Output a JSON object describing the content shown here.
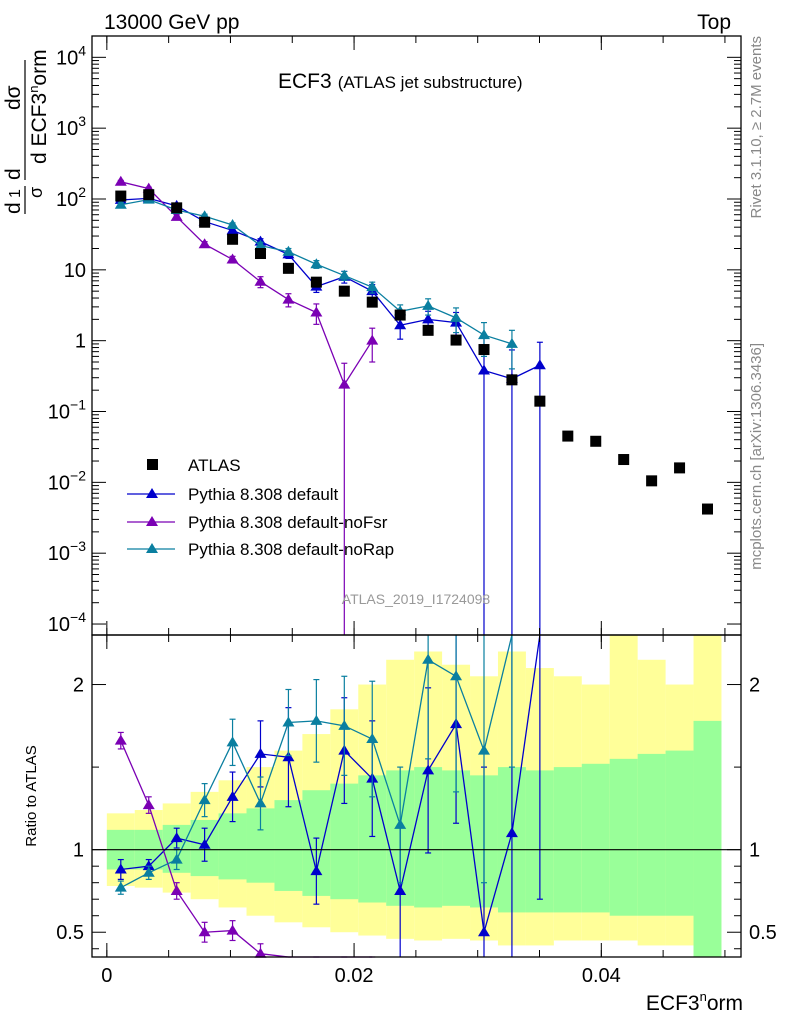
{
  "header": {
    "left": "13000 GeV pp",
    "right": "Top"
  },
  "side_labels": {
    "rivet": "Rivet 3.1.10, ≥ 2.7M events",
    "mcplots": "mcplots.cern.ch [arXiv:1306.3436]"
  },
  "title": {
    "main": "ECF3",
    "sub": "(ATLAS jet substructure)"
  },
  "watermark": "ATLAS_2019_I1724098",
  "ylabel_main": "1/σ dσ/d ECF3norm",
  "ylabel_ratio": "Ratio to ATLAS",
  "xlabel": "ECF3norm",
  "colors": {
    "data": "#000000",
    "default": "#0000cc",
    "noFsr": "#7b00b4",
    "noRap": "#0a7fa0",
    "band_inner": "#99ff99",
    "band_outer": "#ffff99"
  },
  "chart_data": {
    "type": "scatter",
    "x_range": [
      -0.0012,
      0.0513
    ],
    "main_panel": {
      "yscale": "log",
      "ylim": [
        7e-05,
        20000
      ],
      "yticks": [
        {
          "v": 0.0001,
          "base": "10",
          "exp": "−4"
        },
        {
          "v": 0.001,
          "base": "10",
          "exp": "−3"
        },
        {
          "v": 0.01,
          "base": "10",
          "exp": "−2"
        },
        {
          "v": 0.1,
          "base": "10",
          "exp": "−1"
        },
        {
          "v": 1,
          "base": "1",
          "exp": ""
        },
        {
          "v": 10,
          "base": "10",
          "exp": ""
        },
        {
          "v": 100,
          "base": "10",
          "exp": "2"
        },
        {
          "v": 1000,
          "base": "10",
          "exp": "3"
        },
        {
          "v": 10000,
          "base": "10",
          "exp": "4"
        }
      ]
    },
    "ratio_panel": {
      "ylim": [
        0.35,
        2.3
      ],
      "yticks": [
        0.5,
        1,
        2
      ],
      "ytick_labels": [
        "0.5",
        "1",
        "2"
      ]
    },
    "xticks": [
      0,
      0.02,
      0.04
    ],
    "xtick_labels": [
      "0",
      "0.02",
      "0.04"
    ],
    "bin_edges": [
      0.0,
      0.00226,
      0.00452,
      0.00678,
      0.00904,
      0.0113,
      0.01356,
      0.01582,
      0.01808,
      0.02034,
      0.0226,
      0.02486,
      0.02712,
      0.02938,
      0.03164,
      0.0339,
      0.03616,
      0.03842,
      0.04068,
      0.04294,
      0.0452,
      0.04746,
      0.04972
    ],
    "data": {
      "name": "ATLAS",
      "x": [
        0.00113,
        0.00339,
        0.00565,
        0.00791,
        0.01017,
        0.01243,
        0.01469,
        0.01695,
        0.01921,
        0.02147,
        0.02373,
        0.02599,
        0.02825,
        0.03051,
        0.03277,
        0.03503,
        0.03729,
        0.03955,
        0.04181,
        0.04407,
        0.04633,
        0.04859
      ],
      "y": [
        110,
        115,
        75,
        47,
        27,
        17,
        10.5,
        6.7,
        5.0,
        3.5,
        2.3,
        1.4,
        1.02,
        0.75,
        0.28,
        0.14,
        0.045,
        0.038,
        0.021,
        0.0105,
        0.016,
        0.0042
      ]
    },
    "band_inner": [
      [
        0.88,
        1.12
      ],
      [
        0.88,
        1.12
      ],
      [
        0.86,
        1.15
      ],
      [
        0.84,
        1.18
      ],
      [
        0.82,
        1.22
      ],
      [
        0.8,
        1.25
      ],
      [
        0.75,
        1.3
      ],
      [
        0.72,
        1.36
      ],
      [
        0.7,
        1.4
      ],
      [
        0.68,
        1.45
      ],
      [
        0.66,
        1.48
      ],
      [
        0.65,
        1.5
      ],
      [
        0.66,
        1.48
      ],
      [
        0.65,
        1.45
      ],
      [
        0.62,
        1.5
      ],
      [
        0.62,
        1.48
      ],
      [
        0.62,
        1.5
      ],
      [
        0.62,
        1.52
      ],
      [
        0.6,
        1.55
      ],
      [
        0.6,
        1.58
      ],
      [
        0.6,
        1.6
      ],
      [
        0.35,
        1.78
      ]
    ],
    "band_outer": [
      [
        0.78,
        1.22
      ],
      [
        0.77,
        1.24
      ],
      [
        0.74,
        1.28
      ],
      [
        0.7,
        1.35
      ],
      [
        0.65,
        1.42
      ],
      [
        0.6,
        1.5
      ],
      [
        0.56,
        1.6
      ],
      [
        0.53,
        1.7
      ],
      [
        0.5,
        1.85
      ],
      [
        0.48,
        2.0
      ],
      [
        0.46,
        2.15
      ],
      [
        0.45,
        2.2
      ],
      [
        0.46,
        2.12
      ],
      [
        0.45,
        2.05
      ],
      [
        0.42,
        2.2
      ],
      [
        0.42,
        2.1
      ],
      [
        0.45,
        2.05
      ],
      [
        0.45,
        2.0
      ],
      [
        0.45,
        2.3
      ],
      [
        0.42,
        2.15
      ],
      [
        0.42,
        2.0
      ],
      [
        0.35,
        2.3
      ]
    ],
    "series": [
      {
        "name": "Pythia 8.308 default",
        "x": [
          0.00113,
          0.00339,
          0.00565,
          0.00791,
          0.01017,
          0.01243,
          0.01469,
          0.01695,
          0.01921,
          0.02147,
          0.02373,
          0.02599,
          0.02825,
          0.03051,
          0.03277,
          0.03503
        ],
        "y": [
          97,
          102,
          80,
          48,
          36,
          25,
          16.5,
          5.8,
          8.0,
          5.0,
          1.65,
          2.0,
          1.8,
          0.38,
          0.29,
          0.45
        ],
        "yerr": [
          7,
          6,
          5,
          4,
          3,
          2.5,
          2,
          1,
          1.5,
          1.2,
          0.6,
          0.6,
          0.7,
          0.7,
          0.45,
          0.5
        ],
        "ratio": [
          0.88,
          0.9,
          1.07,
          1.03,
          1.32,
          1.58,
          1.56,
          0.87,
          1.6,
          1.43,
          0.75,
          1.48,
          1.76,
          0.5,
          1.1,
          3.2
        ],
        "ratio_err": [
          0.06,
          0.04,
          0.06,
          0.1,
          0.15,
          0.2,
          0.3,
          0.2,
          0.32,
          0.35,
          0.4,
          0.5,
          0.6,
          1.0,
          1.5,
          2.5
        ]
      },
      {
        "name": "Pythia 8.308 default-noFsr",
        "x": [
          0.00113,
          0.00339,
          0.00565,
          0.00791,
          0.01017,
          0.01243,
          0.01469,
          0.01695,
          0.01921,
          0.02147
        ],
        "y": [
          175,
          140,
          56,
          23,
          14,
          6.8,
          3.8,
          2.5,
          0.24,
          1.0
        ],
        "yerr": [
          8,
          7,
          4,
          2,
          1.5,
          1.2,
          0.8,
          0.8,
          0.24,
          0.5
        ],
        "ratio": [
          1.66,
          1.27,
          0.75,
          0.5,
          0.51,
          0.37,
          0.3,
          0.2,
          0.05,
          0.15
        ],
        "ratio_err": [
          0.05,
          0.05,
          0.05,
          0.06,
          0.06,
          0.06,
          0.05,
          0.05,
          0.05,
          0.05
        ]
      },
      {
        "name": "Pythia 8.308 default-noRap",
        "x": [
          0.00113,
          0.00339,
          0.00565,
          0.00791,
          0.01017,
          0.01243,
          0.01469,
          0.01695,
          0.01921,
          0.02147,
          0.02373,
          0.02599,
          0.02825,
          0.03051,
          0.03277
        ],
        "y": [
          83,
          98,
          70,
          57,
          43,
          22,
          18,
          12,
          8.3,
          5.7,
          2.6,
          3.1,
          2.1,
          1.2,
          0.9
        ],
        "yerr": [
          6,
          6,
          5,
          4,
          3,
          2.5,
          2,
          1.5,
          1.2,
          1.0,
          0.6,
          0.8,
          0.8,
          0.6,
          0.5
        ],
        "ratio": [
          0.77,
          0.86,
          0.94,
          1.3,
          1.65,
          1.28,
          1.77,
          1.78,
          1.75,
          1.67,
          1.15,
          2.15,
          2.05,
          1.6,
          3.0
        ],
        "ratio_err": [
          0.04,
          0.04,
          0.06,
          0.1,
          0.14,
          0.16,
          0.2,
          0.25,
          0.3,
          0.35,
          0.35,
          0.6,
          0.7,
          0.8,
          1.5
        ]
      }
    ]
  }
}
